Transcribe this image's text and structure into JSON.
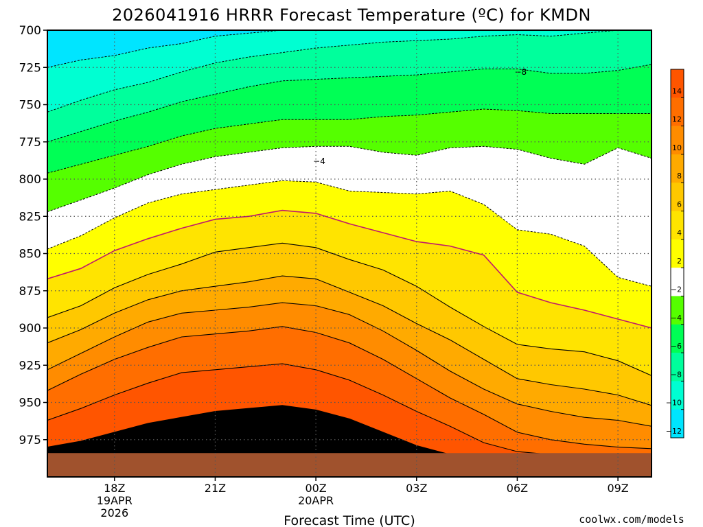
{
  "title": "2026041916 HRRR Forecast Temperature (ºC) for KMDN",
  "watermark": "coolwx.com/models",
  "colors": {
    "ground": "#a0522d",
    "freezing_line": "#c0186c",
    "bands": [
      "#00e5ff",
      "#00ffd2",
      "#00ff9c",
      "#00ff55",
      "#55ff00",
      "#ffffff",
      "#ffff00",
      "#ffe400",
      "#ffc800",
      "#ffaa00",
      "#ff8c00",
      "#ff6e00",
      "#ff5500"
    ]
  },
  "chart_data": {
    "type": "contour",
    "title": "2026041916 HRRR Forecast Temperature (ºC) for KMDN",
    "xlabel": "Forecast Time (UTC)",
    "ylabel": "",
    "x_hours": [
      16,
      17,
      18,
      19,
      20,
      21,
      22,
      23,
      24,
      25,
      26,
      27,
      28,
      29,
      30,
      31,
      32,
      33,
      34
    ],
    "xlim": [
      16,
      34
    ],
    "ylim": [
      700,
      1000
    ],
    "y_reversed": true,
    "yticks": [
      "700",
      "725",
      "750",
      "775",
      "800",
      "825",
      "850",
      "875",
      "900",
      "925",
      "950",
      "975"
    ],
    "xticks": [
      {
        "hour": 18,
        "lines": [
          "18Z",
          "19APR",
          "2026"
        ]
      },
      {
        "hour": 21,
        "lines": [
          "21Z"
        ]
      },
      {
        "hour": 24,
        "lines": [
          "00Z",
          "20APR"
        ]
      },
      {
        "hour": 27,
        "lines": [
          "03Z"
        ]
      },
      {
        "hour": 30,
        "lines": [
          "06Z"
        ]
      },
      {
        "hour": 33,
        "lines": [
          "09Z"
        ]
      }
    ],
    "levels": [
      -14,
      -12,
      -10,
      -8,
      -6,
      -4,
      -2,
      2,
      4,
      6,
      8,
      10,
      12,
      14
    ],
    "colorbar_labels": [
      "14",
      "12",
      "10",
      "8",
      "6",
      "4",
      "2",
      "−2",
      "−4",
      "−6",
      "−8",
      "−10",
      "−12"
    ],
    "contour_labels": [
      {
        "value": "−8",
        "hour": 30.1,
        "p": 728
      },
      {
        "value": "−4",
        "hour": 24.1,
        "p": 788
      }
    ],
    "surface_pressure_hpa": [
      984,
      984,
      984,
      984,
      984,
      984,
      984,
      984,
      984,
      984,
      984,
      984,
      984,
      984,
      984,
      984,
      984,
      984,
      984
    ],
    "isotherms": [
      {
        "level": -12,
        "p": [
          725,
          720,
          717,
          712,
          709,
          704,
          702,
          700,
          697,
          693,
          690,
          686,
          684,
          683,
          682,
          681,
          680,
          678,
          675
        ]
      },
      {
        "level": -10,
        "p": [
          755,
          747,
          740,
          735,
          728,
          722,
          718,
          715,
          712,
          710,
          708,
          707,
          706,
          704,
          703,
          704,
          702,
          700,
          696
        ]
      },
      {
        "level": -8,
        "p": [
          775,
          768,
          761,
          755,
          748,
          743,
          738,
          734,
          733,
          732,
          731,
          730,
          728,
          726,
          726,
          729,
          729,
          727,
          723
        ]
      },
      {
        "level": -6,
        "p": [
          796,
          790,
          784,
          778,
          771,
          766,
          763,
          760,
          760,
          760,
          758,
          757,
          755,
          753,
          754,
          756,
          756,
          756,
          756
        ]
      },
      {
        "level": -4,
        "p": [
          822,
          814,
          806,
          797,
          790,
          785,
          782,
          779,
          778,
          778,
          782,
          784,
          779,
          778,
          780,
          786,
          790,
          779,
          786
        ]
      },
      {
        "level": -2,
        "p": [
          847,
          838,
          826,
          816,
          810,
          807,
          804,
          801,
          802,
          808,
          809,
          810,
          808,
          817,
          834,
          837,
          845,
          866,
          872
        ]
      },
      {
        "level": 2,
        "p": [
          867,
          860,
          848,
          840,
          833,
          827,
          825,
          821,
          823,
          830,
          836,
          842,
          845,
          851,
          876,
          883,
          888,
          894,
          900
        ]
      },
      {
        "level": 4,
        "p": [
          893,
          885,
          873,
          864,
          857,
          849,
          846,
          843,
          846,
          854,
          861,
          872,
          886,
          899,
          911,
          914,
          916,
          922,
          932
        ]
      },
      {
        "level": 6,
        "p": [
          910,
          901,
          890,
          881,
          875,
          872,
          869,
          865,
          867,
          876,
          885,
          897,
          908,
          921,
          934,
          938,
          941,
          945,
          952
        ]
      },
      {
        "level": 8,
        "p": [
          928,
          917,
          906,
          896,
          890,
          888,
          886,
          883,
          885,
          891,
          902,
          915,
          929,
          941,
          951,
          956,
          960,
          962,
          966
        ]
      },
      {
        "level": 10,
        "p": [
          942,
          931,
          921,
          913,
          906,
          904,
          902,
          899,
          903,
          910,
          921,
          934,
          947,
          958,
          970,
          975,
          978,
          980,
          981
        ]
      },
      {
        "level": 12,
        "p": [
          962,
          954,
          945,
          937,
          930,
          928,
          926,
          924,
          928,
          935,
          945,
          956,
          966,
          977,
          983,
          985,
          986,
          986,
          986
        ]
      },
      {
        "level": 14,
        "p": [
          980,
          976,
          970,
          964,
          960,
          956,
          954,
          952,
          955,
          961,
          970,
          979,
          985,
          988,
          989,
          989,
          989,
          989,
          989
        ]
      }
    ]
  }
}
